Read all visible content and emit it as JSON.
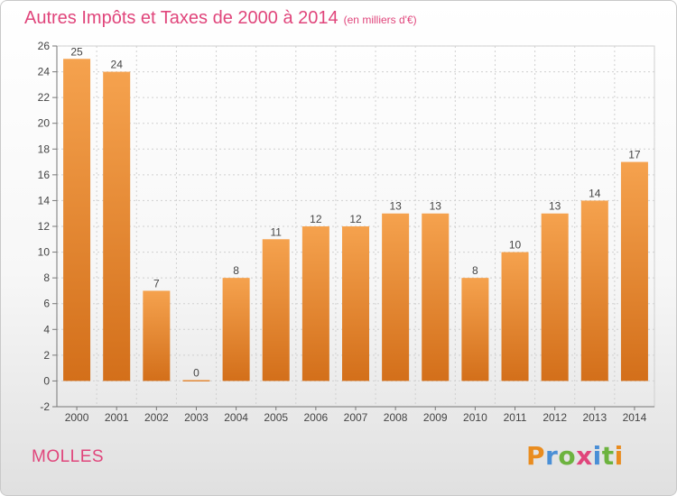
{
  "title": "Autres Impôts et Taxes de 2000 à 2014",
  "unit": "(en milliers d'€)",
  "place": "MOLLES",
  "logo": "Proxiti",
  "colors": {
    "bar_top": "#f5a24e",
    "bar_bottom": "#d36f1a",
    "title": "#e0457b",
    "grid": "#d0d0d0"
  },
  "chart_data": {
    "type": "bar",
    "title": "Autres Impôts et Taxes de 2000 à 2014",
    "categories": [
      "2000",
      "2001",
      "2002",
      "2003",
      "2004",
      "2005",
      "2006",
      "2007",
      "2008",
      "2009",
      "2010",
      "2011",
      "2012",
      "2013",
      "2014"
    ],
    "values": [
      25,
      24,
      7,
      0,
      8,
      11,
      12,
      12,
      13,
      13,
      8,
      10,
      13,
      14,
      17
    ],
    "ylim": [
      -2,
      26
    ],
    "yticks": [
      -2,
      0,
      2,
      4,
      6,
      8,
      10,
      12,
      14,
      16,
      18,
      20,
      22,
      24,
      26
    ],
    "grid": true,
    "legend": "none"
  }
}
